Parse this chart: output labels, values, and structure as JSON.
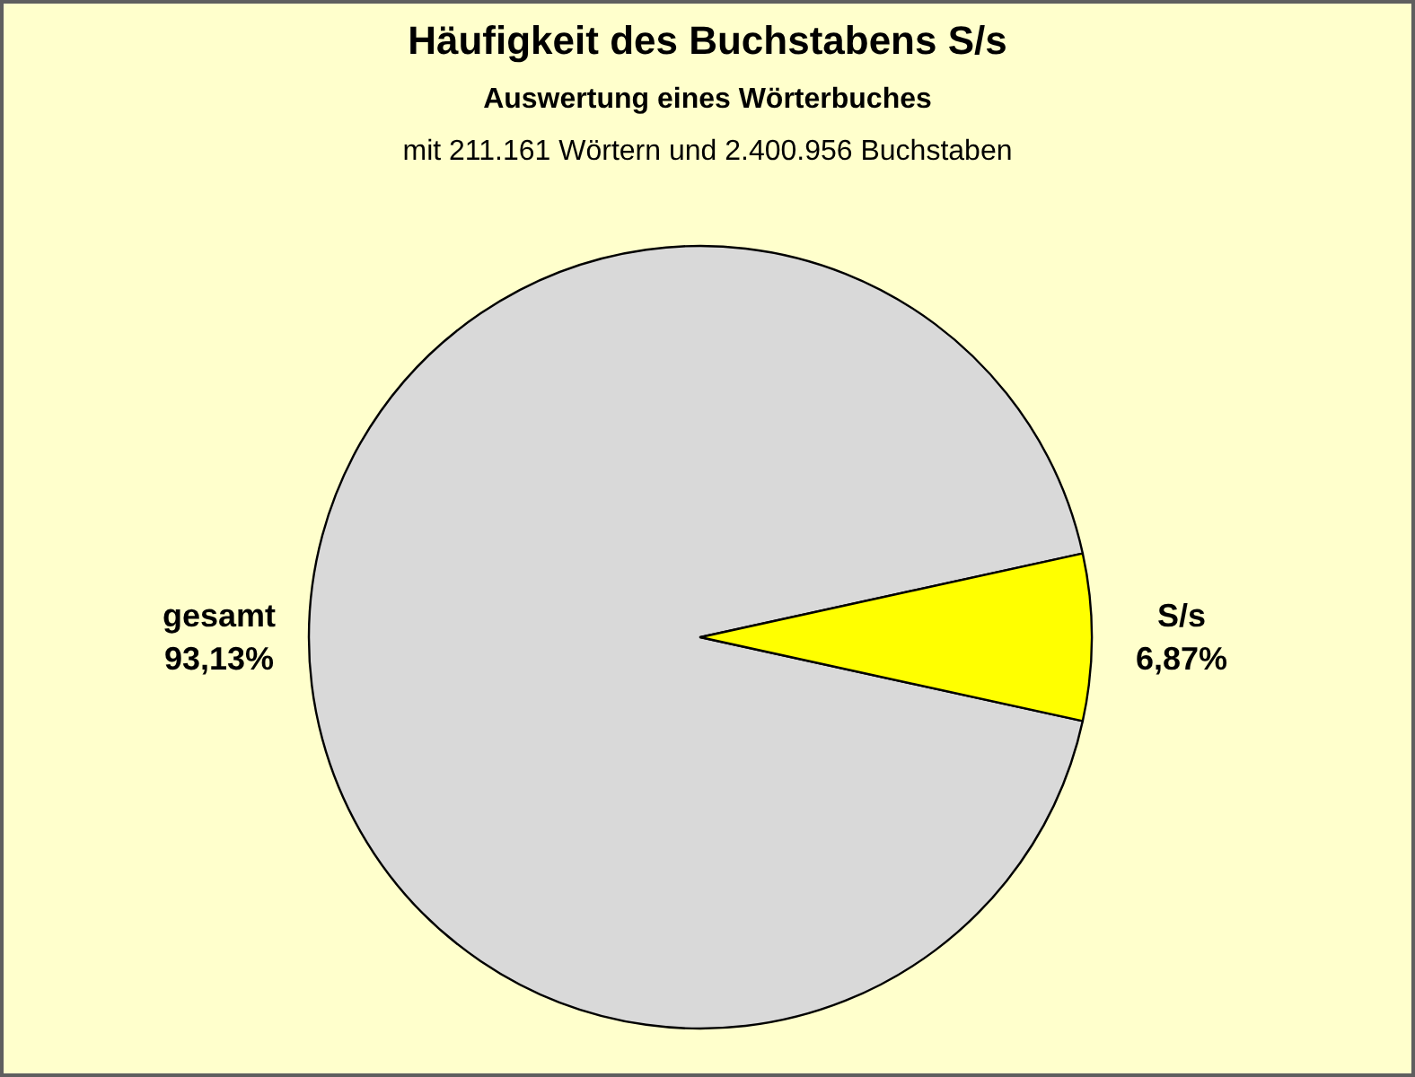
{
  "chart_data": {
    "type": "pie",
    "title": "Häufigkeit des Buchstabens S/s",
    "subtitle": "Auswertung eines Wörterbuches",
    "annotations": [
      "mit 211.161 Wörtern und 2.400.956 Buchstaben"
    ],
    "categories": [
      "gesamt",
      "S/s"
    ],
    "values": [
      93.13,
      6.87
    ],
    "colors": [
      "#d9d9d9",
      "#ffff00"
    ],
    "value_labels": [
      "93,13%",
      "6,87%"
    ],
    "legend": false
  }
}
